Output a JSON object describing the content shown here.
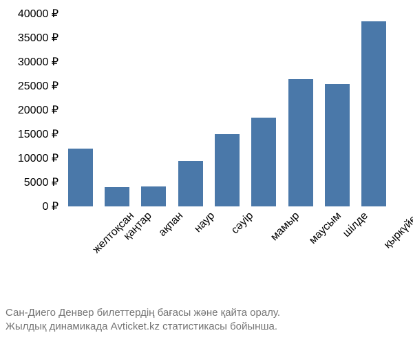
{
  "chart": {
    "type": "bar",
    "categories": [
      "желтоқсан",
      "қаңтар",
      "ақпан",
      "наур",
      "сәуір",
      "мамыр",
      "маусым",
      "шілде",
      "қыркүйек"
    ],
    "values": [
      12000,
      4000,
      4100,
      9500,
      15000,
      18500,
      26500,
      25500,
      38500
    ],
    "bar_color": "#4a78a9",
    "background_color": "#ffffff",
    "ylim": [
      0,
      40000
    ],
    "ytick_step": 5000,
    "y_ticks": [
      0,
      5000,
      10000,
      15000,
      20000,
      25000,
      30000,
      35000,
      40000
    ],
    "y_tick_labels": [
      "0 ₽",
      "5000 ₽",
      "10000 ₽",
      "15000 ₽",
      "20000 ₽",
      "25000 ₽",
      "30000 ₽",
      "35000 ₽",
      "40000 ₽"
    ],
    "axis_fontsize": 16,
    "label_fontsize": 16,
    "x_label_rotation": -45,
    "bar_width_ratio": 0.68
  },
  "caption": {
    "line1": "Сан-Диего Денвер билеттердің бағасы және қайта оралу.",
    "line2": "Жылдық динамикада Avticket.kz статистикасы бойынша.",
    "color": "#757575",
    "fontsize": 15
  }
}
